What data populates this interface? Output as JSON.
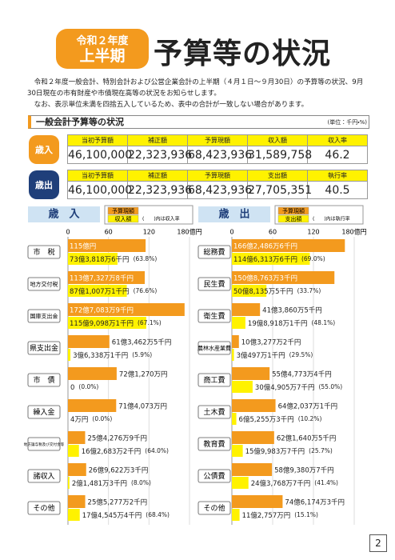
{
  "header": {
    "badge_year": "令和２年度",
    "badge_period": "上半期",
    "title": "予算等の状況"
  },
  "intro": [
    "令和２年度一般会計、特別会計および公営企業会計の上半期（４月１日～９月30日）の予算等の状況、9月30日現在の市有財産や市債現在高等の状況をお知らせします。",
    "なお、表示単位未満を四捨五入しているため、表中の合計が一致しない場合があります。"
  ],
  "section": {
    "title": "一般会計予算等の状況",
    "unit": "(単位：千円・%)"
  },
  "tables": [
    {
      "label": "歳入",
      "header": [
        "当初予算額",
        "補正額",
        "予算現額",
        "収入額",
        "収入率"
      ],
      "row": [
        "46,100,000",
        "22,323,936",
        "68,423,936",
        "31,589,758",
        "46.2"
      ]
    },
    {
      "label": "歳出",
      "header": [
        "当初予算額",
        "補正額",
        "予算現額",
        "支出額",
        "執行率"
      ],
      "row": [
        "46,100,000",
        "22,323,936",
        "68,423,936",
        "27,705,351",
        "40.5"
      ]
    }
  ],
  "chart_data": [
    {
      "type": "bar",
      "title": "歳　入",
      "note": "(　　)内は収入率",
      "categories": [
        "市　税",
        "地方交付税",
        "国庫支出金",
        "県支出金",
        "市　債",
        "繰入金",
        "地方譲与税及び交付金等",
        "諸収入",
        "その他"
      ],
      "xlim": [
        0,
        180
      ],
      "xticks": [
        0,
        60,
        120,
        {
          "value": 180,
          "label": "180億円"
        }
      ],
      "grid": true,
      "series": [
        {
          "name": "予算現額",
          "color": "#f39a1e",
          "values": [
            115,
            113.73278,
            172.70839,
            61.34625,
            72.127,
            71.4073,
            25.42769,
            26.96223,
            25.52772
          ],
          "value_labels": [
            "115億円",
            "113億7,327万8千円",
            "172億7,083万9千円",
            "61億3,462万5千円",
            "72億1,270万円",
            "71億4,073万円",
            "25億4,276万9千円",
            "26億9,622万3千円",
            "25億5,277万2千円"
          ]
        },
        {
          "name": "収入額",
          "color": "#fff200",
          "values": [
            73.38186,
            87.10071,
            115.90981,
            3.63381,
            0,
            0.0004,
            16.26832,
            2.14813,
            17.45454
          ],
          "value_labels": [
            "73億3,818万6千円",
            "87億1,007万1千円",
            "115億9,098万1千円",
            "3億6,338万1千円",
            "0",
            "4万円",
            "16億2,683万2千円",
            "2億1,481万3千円",
            "17億4,545万4千円"
          ],
          "rate_labels": [
            "(63.8%)",
            "(76.6%)",
            "(67.1%)",
            "(5.9%)",
            "(0.0%)",
            "(0.0%)",
            "(64.0%)",
            "(8.0%)",
            "(68.4%)"
          ]
        }
      ]
    },
    {
      "type": "bar",
      "title": "歳　出",
      "note": "(　　)内は執行率",
      "categories": [
        "総務費",
        "民生費",
        "衛生費",
        "農林水産業費",
        "商工費",
        "土木費",
        "教育費",
        "公債費",
        "その他"
      ],
      "xlim": [
        0,
        180
      ],
      "xticks": [
        0,
        60,
        120,
        {
          "value": 180,
          "label": "180億円"
        }
      ],
      "grid": true,
      "series": [
        {
          "name": "予算現額",
          "color": "#f39a1e",
          "values": [
            166.24866,
            150.87633,
            41.38605,
            10.32772,
            55.47734,
            64.20371,
            62.16405,
            58.93807,
            74.61743
          ],
          "value_labels": [
            "166億2,486万6千円",
            "150億8,763万3千円",
            "41億3,860万5千円",
            "10億3,277万2千円",
            "55億4,773万4千円",
            "64億2,037万1千円",
            "62億1,640万5千円",
            "58億9,380万7千円",
            "74億6,174万3千円"
          ]
        },
        {
          "name": "支出額",
          "color": "#fff200",
          "values": [
            114.63136,
            50.81355,
            19.89181,
            3.04971,
            30.49057,
            6.52553,
            15.99837,
            24.37687,
            11.2757
          ],
          "value_labels": [
            "114億6,313万6千円",
            "50億8,135万5千円",
            "19億8,918万1千円",
            "3億497万1千円",
            "30億4,905万7千円",
            "6億5,255万3千円",
            "15億9,983万7千円",
            "24億3,768万7千円",
            "11億2,757万円"
          ],
          "rate_labels": [
            "(69.0%)",
            "(33.7%)",
            "(48.1%)",
            "(29.5%)",
            "(55.0%)",
            "(10.2%)",
            "(25.7%)",
            "(41.4%)",
            "(15.1%)"
          ]
        }
      ]
    }
  ],
  "page_number": "2"
}
